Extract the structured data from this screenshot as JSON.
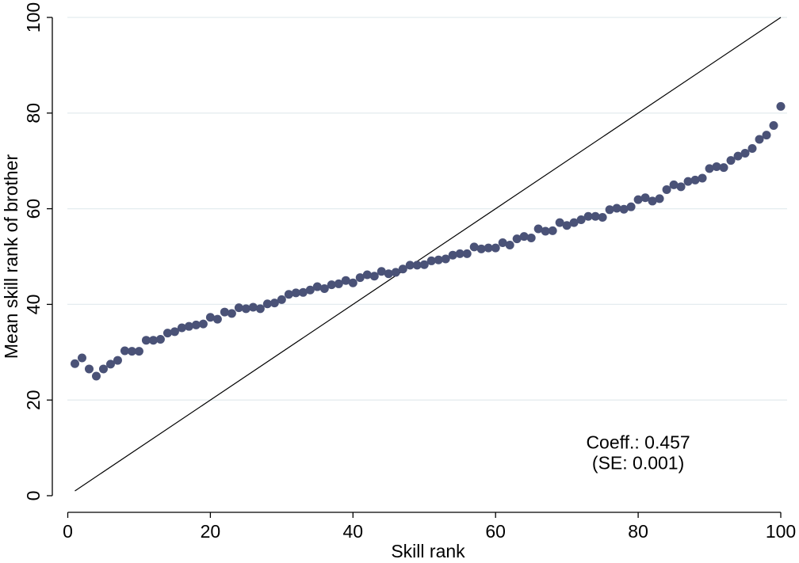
{
  "chart_data": {
    "type": "scatter",
    "title": "",
    "xlabel": "Skill rank",
    "ylabel": "Mean skill rank of brother",
    "xlim": [
      0,
      100
    ],
    "ylim": [
      0,
      100
    ],
    "x_ticks": [
      0,
      20,
      40,
      60,
      80,
      100
    ],
    "y_ticks": [
      0,
      20,
      40,
      60,
      80,
      100
    ],
    "grid": "horizontal",
    "legend": "none",
    "colors": {
      "points": "#4a5277",
      "reference_line": "#000000",
      "grid": "#e4ecef",
      "axis": "#000000"
    },
    "series": [
      {
        "name": "",
        "x": [
          1,
          2,
          3,
          4,
          5,
          6,
          7,
          8,
          9,
          10,
          11,
          12,
          13,
          14,
          15,
          16,
          17,
          18,
          19,
          20,
          21,
          22,
          23,
          24,
          25,
          26,
          27,
          28,
          29,
          30,
          31,
          32,
          33,
          34,
          35,
          36,
          37,
          38,
          39,
          40,
          41,
          42,
          43,
          44,
          45,
          46,
          47,
          48,
          49,
          50,
          51,
          52,
          53,
          54,
          55,
          56,
          57,
          58,
          59,
          60,
          61,
          62,
          63,
          64,
          65,
          66,
          67,
          68,
          69,
          70,
          71,
          72,
          73,
          74,
          75,
          76,
          77,
          78,
          79,
          80,
          81,
          82,
          83,
          84,
          85,
          86,
          87,
          88,
          89,
          90,
          91,
          92,
          93,
          94,
          95,
          96,
          97,
          98,
          99,
          100
        ],
        "y": [
          27.6,
          28.8,
          26.5,
          25.0,
          26.5,
          27.5,
          28.3,
          30.3,
          30.2,
          30.2,
          32.5,
          32.5,
          32.7,
          34.0,
          34.3,
          35.1,
          35.4,
          35.7,
          35.9,
          37.3,
          36.9,
          38.4,
          38.1,
          39.3,
          39.1,
          39.4,
          39.1,
          40.1,
          40.3,
          41.0,
          42.1,
          42.4,
          42.5,
          43.0,
          43.7,
          43.3,
          44.1,
          44.3,
          45.0,
          44.5,
          45.6,
          46.2,
          45.9,
          46.9,
          46.4,
          46.7,
          47.4,
          48.2,
          48.2,
          48.3,
          49.1,
          49.3,
          49.5,
          50.3,
          50.6,
          50.6,
          52.0,
          51.6,
          51.8,
          51.8,
          52.9,
          52.4,
          53.7,
          54.2,
          53.9,
          55.8,
          55.3,
          55.4,
          57.1,
          56.5,
          57.1,
          57.7,
          58.4,
          58.4,
          58.2,
          59.8,
          60.1,
          59.9,
          60.4,
          61.9,
          62.3,
          61.6,
          62.1,
          64.0,
          65.0,
          64.6,
          65.7,
          66.0,
          66.4,
          68.4,
          68.8,
          68.6,
          70.1,
          71.0,
          71.6,
          72.6,
          74.5,
          75.4,
          77.4,
          81.4
        ]
      }
    ],
    "reference_line": {
      "x": [
        1,
        100
      ],
      "y": [
        1,
        100
      ]
    },
    "annotation": {
      "line1": "Coeff.: 0.457",
      "line2": "(SE: 0.001)",
      "x": 80,
      "y": 11
    }
  }
}
